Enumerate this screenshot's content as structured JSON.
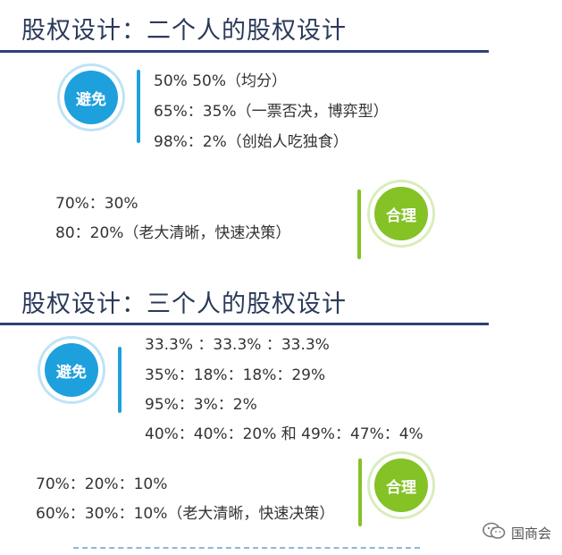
{
  "section1": {
    "title": "股权设计：二个人的股权设计",
    "avoid": {
      "badge": "避免",
      "items": [
        "50%  50%（均分）",
        "65%：35%（一票否决，博弈型）",
        "98%：2%（创始人吃独食）"
      ]
    },
    "reasonable": {
      "badge": "合理",
      "items": [
        "70%：30%",
        "80：20%（老大清晰，快速决策）"
      ]
    }
  },
  "section2": {
    "title": "股权设计：三个人的股权设计",
    "avoid": {
      "badge": "避免",
      "items": [
        "33.3%  ：33.3%  ：33.3%",
        "35%：18%：18%：29%",
        "95%：3%：2%",
        "40%：40%：20% 和 49%：47%：4%"
      ]
    },
    "reasonable": {
      "badge": "合理",
      "items": [
        "70%：20%：10%",
        "60%：30%：10%（老大清晰，快速决策）"
      ]
    }
  },
  "watermark": {
    "icon": "wechat-icon",
    "text": "国商会"
  },
  "colors": {
    "title": "#2b3a5a",
    "rule": "#2f3f78",
    "avoid": "#1ea0dc",
    "reasonable": "#84c226"
  }
}
